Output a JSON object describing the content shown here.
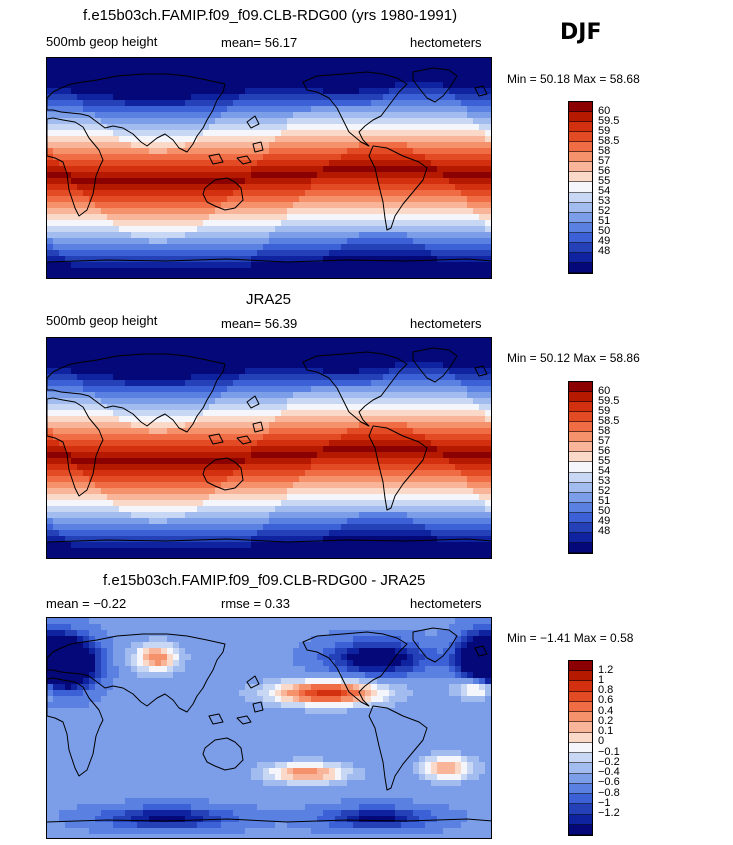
{
  "season": "DJF",
  "panels": [
    {
      "title": "f.e15b03ch.FAMIP.f09_f09.CLB-RDG00 (yrs 1980-1991)",
      "left_text": "500mb geop height",
      "mid_text": "mean=  56.17",
      "units": "hectometers",
      "minmax": "Min =  50.18 Max =  58.68",
      "labels": [
        "60",
        "59.5",
        "59",
        "58.5",
        "58",
        "57",
        "56",
        "55",
        "54",
        "53",
        "52",
        "51",
        "50",
        "49",
        "48"
      ],
      "colors": [
        "#8b0000",
        "#b51a00",
        "#d2300f",
        "#e24b24",
        "#ef6c44",
        "#f5916b",
        "#f9b59a",
        "#fbd9c8",
        "#f4f6fb",
        "#c8d8f4",
        "#a2bcef",
        "#7c9ee9",
        "#5a80e2",
        "#3c61d6",
        "#2441b8",
        "#0f22a0",
        "#040878"
      ],
      "dist": "abs"
    },
    {
      "title": "JRA25",
      "left_text": "500mb geop height",
      "mid_text": "mean=  56.39",
      "units": "hectometers",
      "minmax": "Min =  50.12 Max =  58.86",
      "labels": [
        "60",
        "59.5",
        "59",
        "58.5",
        "58",
        "57",
        "56",
        "55",
        "54",
        "53",
        "52",
        "51",
        "50",
        "49",
        "48"
      ],
      "colors": [
        "#8b0000",
        "#b51a00",
        "#d2300f",
        "#e24b24",
        "#ef6c44",
        "#f5916b",
        "#f9b59a",
        "#fbd9c8",
        "#f4f6fb",
        "#c8d8f4",
        "#a2bcef",
        "#7c9ee9",
        "#5a80e2",
        "#3c61d6",
        "#2441b8",
        "#0f22a0",
        "#040878"
      ],
      "dist": "abs"
    },
    {
      "title": "f.e15b03ch.FAMIP.f09_f09.CLB-RDG00 - JRA25",
      "left_text": "mean =  −0.22",
      "mid_text": "rmse =    0.33",
      "units": "hectometers",
      "minmax": "Min =  −1.41 Max =   0.58",
      "labels": [
        "1.2",
        "1",
        "0.8",
        "0.6",
        "0.4",
        "0.2",
        "0.1",
        "0",
        "−0.1",
        "−0.2",
        "−0.4",
        "−0.6",
        "−0.8",
        "−1",
        "−1.2"
      ],
      "colors": [
        "#8b0000",
        "#b51a00",
        "#d2300f",
        "#e24b24",
        "#ef6c44",
        "#f5916b",
        "#f9b59a",
        "#fbd9c8",
        "#f4f6fb",
        "#c8d8f4",
        "#a2bcef",
        "#7c9ee9",
        "#5a80e2",
        "#3c61d6",
        "#2441b8",
        "#0f22a0",
        "#040878"
      ],
      "dist": "diff"
    }
  ]
}
